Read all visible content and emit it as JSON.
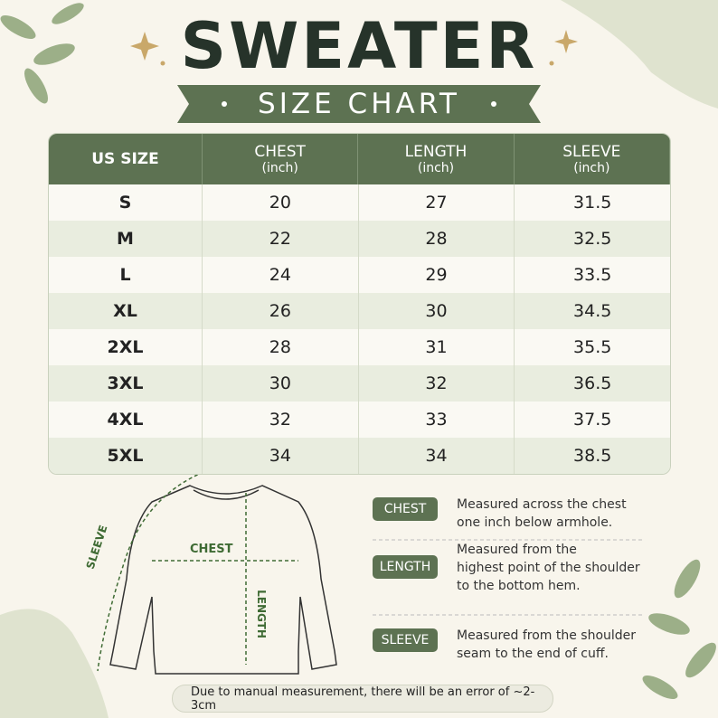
{
  "header": {
    "title": "SWEATER",
    "subtitle": "SIZE CHART"
  },
  "table": {
    "columns": [
      {
        "name": "US SIZE"
      },
      {
        "name": "CHEST",
        "unit": "(inch)"
      },
      {
        "name": "LENGTH",
        "unit": "(inch)"
      },
      {
        "name": "SLEEVE",
        "unit": "(inch)"
      }
    ],
    "rows": [
      [
        "S",
        20,
        27,
        31.5
      ],
      [
        "M",
        22,
        28,
        32.5
      ],
      [
        "L",
        24,
        29,
        33.5
      ],
      [
        "XL",
        26,
        30,
        34.5
      ],
      [
        "2XL",
        28,
        31,
        35.5
      ],
      [
        "3XL",
        30,
        32,
        36.5
      ],
      [
        "4XL",
        32,
        33,
        37.5
      ],
      [
        "5XL",
        34,
        34,
        38.5
      ]
    ]
  },
  "diagram": {
    "sleeve": "SLEEVE",
    "chest": "CHEST",
    "length": "LENGTH"
  },
  "legend": [
    {
      "tag": "CHEST",
      "text": [
        "Measured across the chest",
        "one inch below armhole."
      ]
    },
    {
      "tag": "LENGTH",
      "text": [
        "Measured from the",
        "highest point of the shoulder",
        "to the bottom hem."
      ]
    },
    {
      "tag": "SLEEVE",
      "text": [
        "Measured from the shoulder",
        "seam to the end of cuff."
      ]
    }
  ],
  "note": "Due to manual measurement, there will be an error of ~2-3cm"
}
